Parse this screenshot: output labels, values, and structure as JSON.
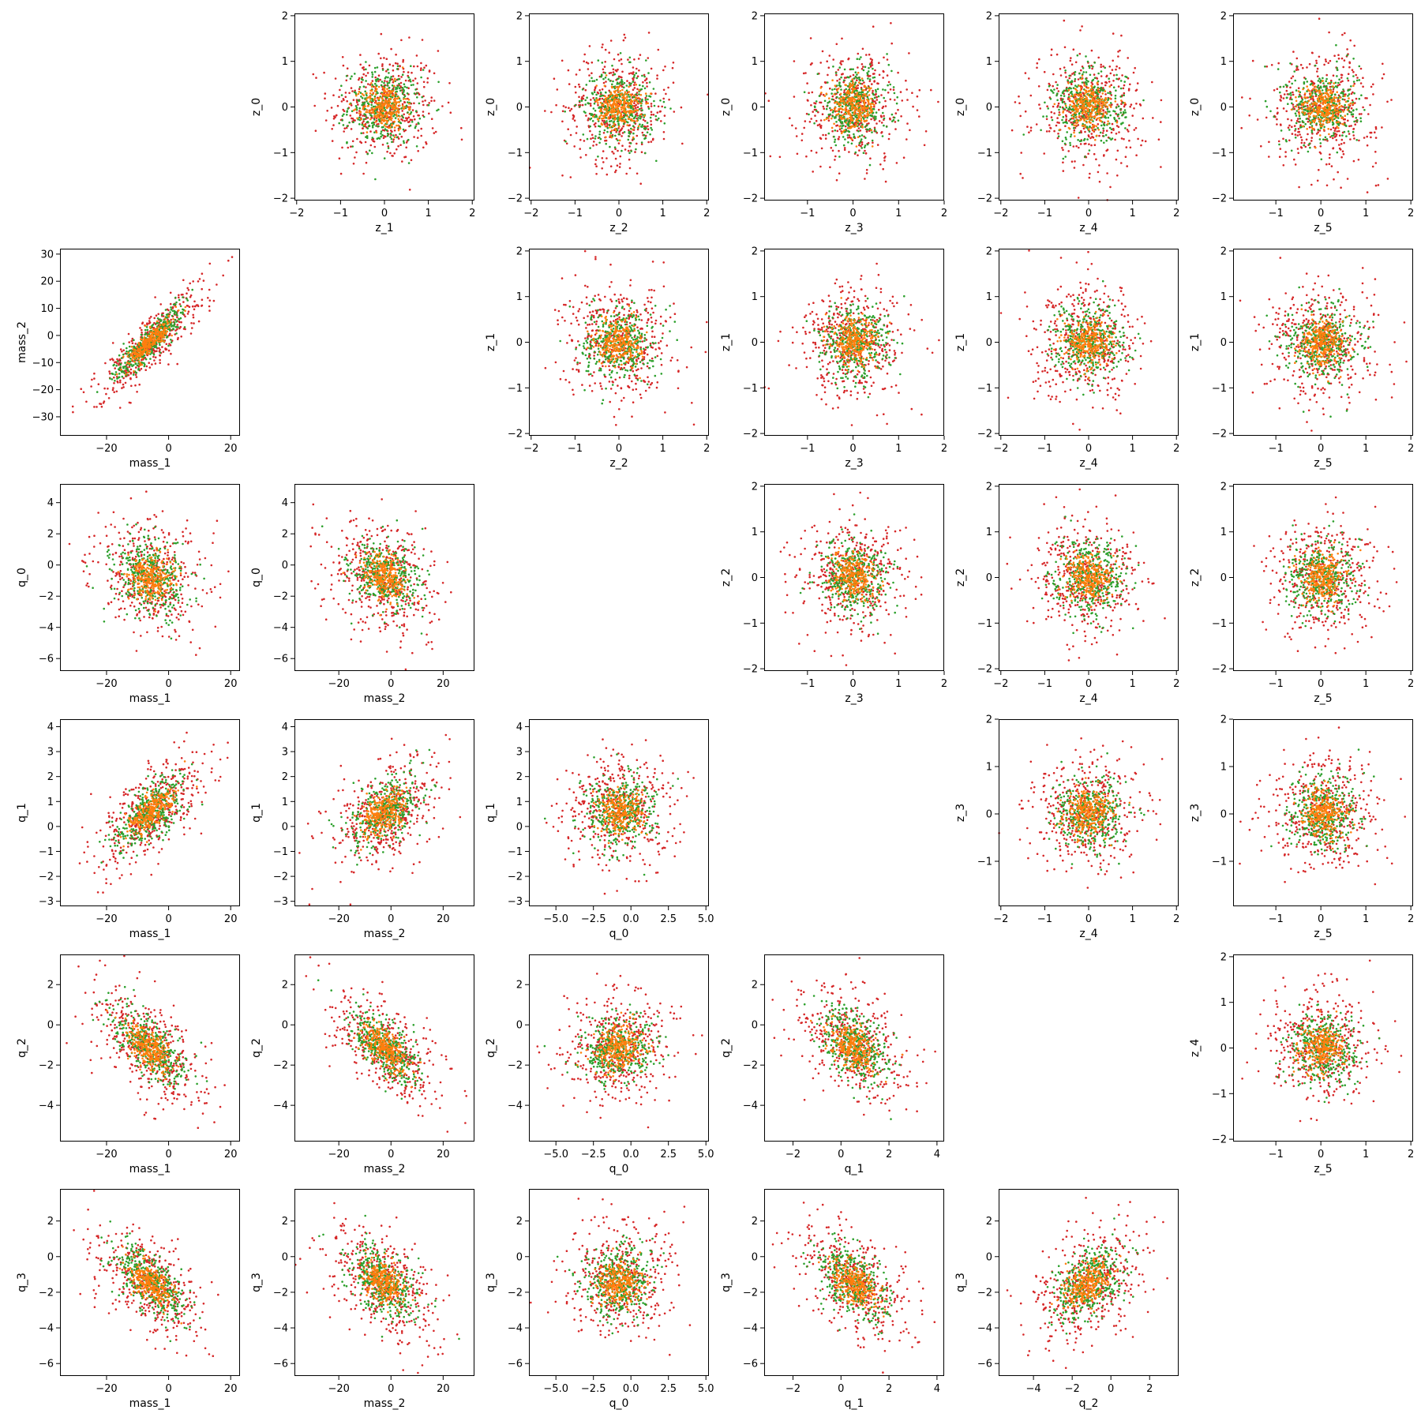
{
  "figure": {
    "series_colors": [
      "#d62728",
      "#2ca02c",
      "#ff7f0e"
    ]
  },
  "variables": {
    "mass_1": {
      "label": "mass_1",
      "range": [
        -35,
        23
      ],
      "ticks": [
        -20,
        0,
        20
      ],
      "tick_labels": [
        "−20",
        "0",
        "20"
      ]
    },
    "mass_2": {
      "label": "mass_2",
      "range": [
        -37,
        32
      ],
      "ticks": [
        -30,
        -20,
        -10,
        0,
        10,
        20,
        30
      ],
      "tick_labels": [
        "−30",
        "−20",
        "−10",
        "0",
        "10",
        "20",
        "30"
      ],
      "x_ticks": [
        -20,
        0,
        20
      ],
      "x_tick_labels": [
        "−20",
        "0",
        "20"
      ]
    },
    "q_0": {
      "label": "q_0",
      "range": [
        -6.8,
        5.2
      ],
      "ticks": [
        -6,
        -4,
        -2,
        0,
        2,
        4
      ],
      "tick_labels": [
        "−6",
        "−4",
        "−2",
        "0",
        "2",
        "4"
      ],
      "x_ticks": [
        -5,
        -2.5,
        0,
        2.5,
        5
      ],
      "x_tick_labels": [
        "−5.0",
        "−2.5",
        "0.0",
        "2.5",
        "5.0"
      ]
    },
    "q_1": {
      "label": "q_1",
      "range": [
        -3.2,
        4.3
      ],
      "ticks": [
        -3,
        -2,
        -1,
        0,
        1,
        2,
        3,
        4
      ],
      "tick_labels": [
        "−3",
        "−2",
        "−1",
        "0",
        "1",
        "2",
        "3",
        "4"
      ],
      "x_ticks": [
        -2,
        0,
        2,
        4
      ],
      "x_tick_labels": [
        "−2",
        "0",
        "2",
        "4"
      ]
    },
    "q_2": {
      "label": "q_2",
      "range": [
        -5.8,
        3.5
      ],
      "ticks": [
        -4,
        -2,
        0,
        2
      ],
      "tick_labels": [
        "−4",
        "−2",
        "0",
        "2"
      ],
      "x_ticks": [
        -4,
        -2,
        0,
        2
      ],
      "x_tick_labels": [
        "−4",
        "−2",
        "0",
        "2"
      ]
    },
    "q_3": {
      "label": "q_3",
      "range": [
        -6.7,
        3.8
      ],
      "ticks": [
        -6,
        -4,
        -2,
        0,
        2
      ],
      "tick_labels": [
        "−6",
        "−4",
        "−2",
        "0",
        "2"
      ]
    },
    "z_0": {
      "label": "z_0",
      "range": [
        -2.05,
        2.05
      ],
      "ticks": [
        -2,
        -1,
        0,
        1,
        2
      ],
      "tick_labels": [
        "−2",
        "−1",
        "0",
        "1",
        "2"
      ]
    },
    "z_1": {
      "label": "z_1",
      "range": [
        -2.05,
        2.05
      ],
      "ticks": [
        -2,
        -1,
        0,
        1,
        2
      ],
      "tick_labels": [
        "−2",
        "−1",
        "0",
        "1",
        "2"
      ]
    },
    "z_2": {
      "label": "z_2",
      "range": [
        -2.05,
        2.05
      ],
      "ticks": [
        -2,
        -1,
        0,
        1,
        2
      ],
      "tick_labels": [
        "−2",
        "−1",
        "0",
        "1",
        "2"
      ]
    },
    "z_3": {
      "label": "z_3",
      "range": [
        -1.95,
        2.0
      ],
      "ticks": [
        -1,
        0,
        1,
        2
      ],
      "tick_labels": [
        "−1",
        "0",
        "1",
        "2"
      ]
    },
    "z_4": {
      "label": "z_4",
      "range": [
        -2.05,
        2.05
      ],
      "ticks": [
        -2,
        -1,
        0,
        1,
        2
      ],
      "tick_labels": [
        "−2",
        "−1",
        "0",
        "1",
        "2"
      ]
    },
    "z_5": {
      "label": "z_5",
      "range": [
        -1.95,
        2.05
      ],
      "ticks": [
        -1,
        0,
        1,
        2
      ],
      "tick_labels": [
        "−1",
        "0",
        "1",
        "2"
      ]
    }
  },
  "chart_data": [
    {
      "type": "scatter",
      "row": 0,
      "col": 1,
      "x": "z_1",
      "y": "z_0",
      "corr": 0
    },
    {
      "type": "scatter",
      "row": 0,
      "col": 2,
      "x": "z_2",
      "y": "z_0",
      "corr": 0
    },
    {
      "type": "scatter",
      "row": 0,
      "col": 3,
      "x": "z_3",
      "y": "z_0",
      "corr": 0
    },
    {
      "type": "scatter",
      "row": 0,
      "col": 4,
      "x": "z_4",
      "y": "z_0",
      "corr": 0
    },
    {
      "type": "scatter",
      "row": 0,
      "col": 5,
      "x": "z_5",
      "y": "z_0",
      "corr": 0
    },
    {
      "type": "scatter",
      "row": 1,
      "col": 0,
      "x": "mass_1",
      "y": "mass_2",
      "corr": 0.88
    },
    {
      "type": "scatter",
      "row": 1,
      "col": 2,
      "x": "z_2",
      "y": "z_1",
      "corr": 0
    },
    {
      "type": "scatter",
      "row": 1,
      "col": 3,
      "x": "z_3",
      "y": "z_1",
      "corr": 0
    },
    {
      "type": "scatter",
      "row": 1,
      "col": 4,
      "x": "z_4",
      "y": "z_1",
      "corr": 0
    },
    {
      "type": "scatter",
      "row": 1,
      "col": 5,
      "x": "z_5",
      "y": "z_1",
      "corr": 0
    },
    {
      "type": "scatter",
      "row": 2,
      "col": 0,
      "x": "mass_1",
      "y": "q_0",
      "corr": -0.15
    },
    {
      "type": "scatter",
      "row": 2,
      "col": 1,
      "x": "mass_2",
      "y": "q_0",
      "corr": -0.2
    },
    {
      "type": "scatter",
      "row": 2,
      "col": 3,
      "x": "z_3",
      "y": "z_2",
      "corr": 0
    },
    {
      "type": "scatter",
      "row": 2,
      "col": 4,
      "x": "z_4",
      "y": "z_2",
      "corr": 0
    },
    {
      "type": "scatter",
      "row": 2,
      "col": 5,
      "x": "z_5",
      "y": "z_2",
      "corr": 0
    },
    {
      "type": "scatter",
      "row": 3,
      "col": 0,
      "x": "mass_1",
      "y": "q_1",
      "corr": 0.65
    },
    {
      "type": "scatter",
      "row": 3,
      "col": 1,
      "x": "mass_2",
      "y": "q_1",
      "corr": 0.45
    },
    {
      "type": "scatter",
      "row": 3,
      "col": 2,
      "x": "q_0",
      "y": "q_1",
      "corr": 0
    },
    {
      "type": "scatter",
      "row": 3,
      "col": 4,
      "x": "z_4",
      "y": "z_3",
      "corr": 0
    },
    {
      "type": "scatter",
      "row": 3,
      "col": 5,
      "x": "z_5",
      "y": "z_3",
      "corr": 0
    },
    {
      "type": "scatter",
      "row": 4,
      "col": 0,
      "x": "mass_1",
      "y": "q_2",
      "corr": -0.6
    },
    {
      "type": "scatter",
      "row": 4,
      "col": 1,
      "x": "mass_2",
      "y": "q_2",
      "corr": -0.65
    },
    {
      "type": "scatter",
      "row": 4,
      "col": 2,
      "x": "q_0",
      "y": "q_2",
      "corr": 0.15
    },
    {
      "type": "scatter",
      "row": 4,
      "col": 3,
      "x": "q_1",
      "y": "q_2",
      "corr": -0.45
    },
    {
      "type": "scatter",
      "row": 4,
      "col": 5,
      "x": "z_5",
      "y": "z_4",
      "corr": 0
    },
    {
      "type": "scatter",
      "row": 5,
      "col": 0,
      "x": "mass_1",
      "y": "q_3",
      "corr": -0.6
    },
    {
      "type": "scatter",
      "row": 5,
      "col": 1,
      "x": "mass_2",
      "y": "q_3",
      "corr": -0.45
    },
    {
      "type": "scatter",
      "row": 5,
      "col": 2,
      "x": "q_0",
      "y": "q_3",
      "corr": 0
    },
    {
      "type": "scatter",
      "row": 5,
      "col": 3,
      "x": "q_1",
      "y": "q_3",
      "corr": -0.5
    },
    {
      "type": "scatter",
      "row": 5,
      "col": 4,
      "x": "q_2",
      "y": "q_3",
      "corr": 0.4
    }
  ]
}
